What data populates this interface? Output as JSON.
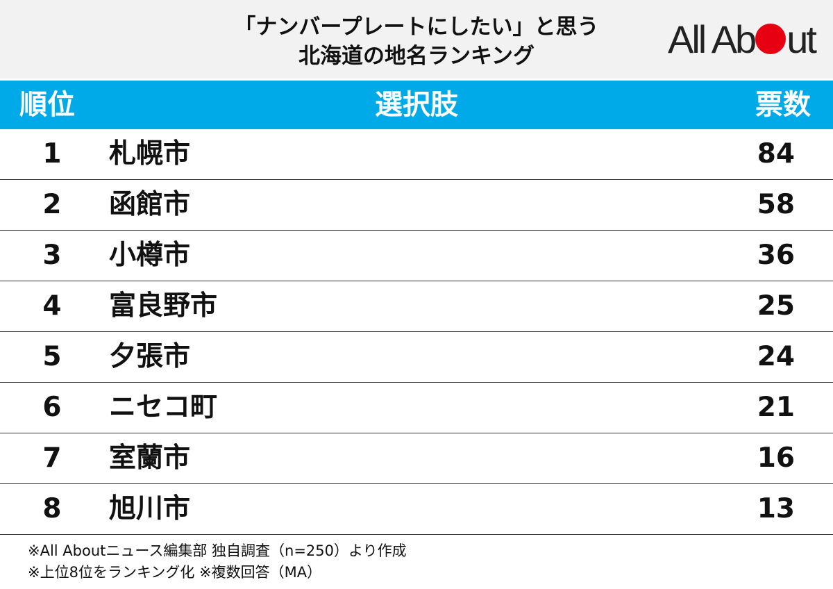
{
  "header": {
    "title_line1": "「ナンバープレートにしたい」と思う",
    "title_line2": "北海道の地名ランキング",
    "logo": "All About",
    "logo_parts": [
      "All Ab",
      "ut"
    ]
  },
  "columns": {
    "rank": "順位",
    "choice": "選択肢",
    "votes": "票数"
  },
  "chart_data": {
    "type": "table",
    "title": "「ナンバープレートにしたい」と思う 北海道の地名ランキング",
    "columns": [
      "順位",
      "選択肢",
      "票数"
    ],
    "rows": [
      {
        "rank": "1",
        "choice": "札幌市",
        "votes": 84
      },
      {
        "rank": "2",
        "choice": "函館市",
        "votes": 58
      },
      {
        "rank": "3",
        "choice": "小樽市",
        "votes": 36
      },
      {
        "rank": "4",
        "choice": "富良野市",
        "votes": 25
      },
      {
        "rank": "5",
        "choice": "夕張市",
        "votes": 24
      },
      {
        "rank": "6",
        "choice": "ニセコ町",
        "votes": 21
      },
      {
        "rank": "7",
        "choice": "室蘭市",
        "votes": 16
      },
      {
        "rank": "8",
        "choice": "旭川市",
        "votes": 13
      }
    ]
  },
  "notes": [
    "※All Aboutニュース編集部 独自調査（n=250）より作成",
    "※上位8位をランキング化 ※複数回答（MA）"
  ],
  "colors": {
    "header_band": "#00a9e8",
    "logo_dot": "#e60012",
    "title_bg": "#f2f2f2"
  }
}
